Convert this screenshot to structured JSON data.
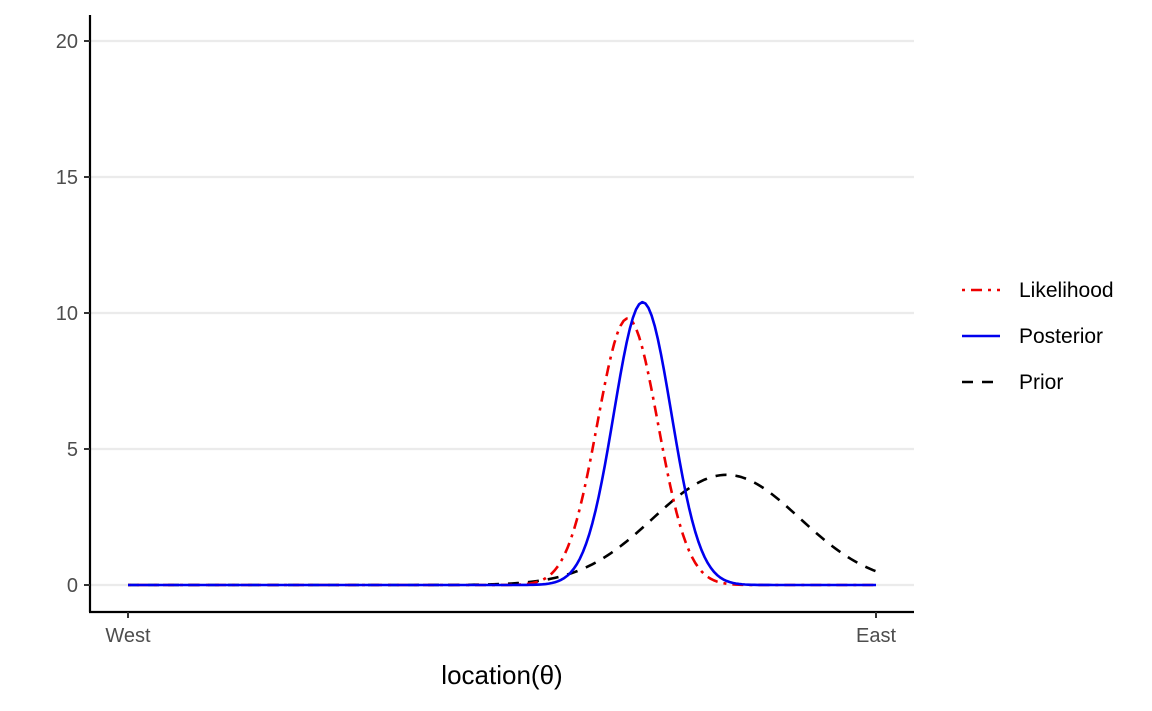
{
  "chart_data": {
    "type": "line",
    "title": "",
    "xlabel": "location(θ)",
    "ylabel": "",
    "xlim": [
      0,
      1
    ],
    "ylim": [
      -1,
      21
    ],
    "x_ticks": [
      {
        "value": 0,
        "label": "West"
      },
      {
        "value": 1,
        "label": "East"
      }
    ],
    "y_ticks": [
      0,
      5,
      10,
      15,
      20
    ],
    "grid": "horizontal-major",
    "legend": {
      "placement": "right"
    },
    "series": [
      {
        "name": "Likelihood",
        "color": "#ee0000",
        "dash": "dotdash",
        "distribution": {
          "mean": 0.668,
          "sd": 0.0405,
          "peak": 9.8
        }
      },
      {
        "name": "Posterior",
        "color": "#0000ee",
        "dash": "solid",
        "distribution": {
          "mean": 0.688,
          "sd": 0.0385,
          "peak": 10.4
        }
      },
      {
        "name": "Prior",
        "color": "#000000",
        "dash": "dashed",
        "distribution": {
          "mean": 0.8,
          "sd": 0.098,
          "peak": 4.05
        }
      }
    ]
  }
}
